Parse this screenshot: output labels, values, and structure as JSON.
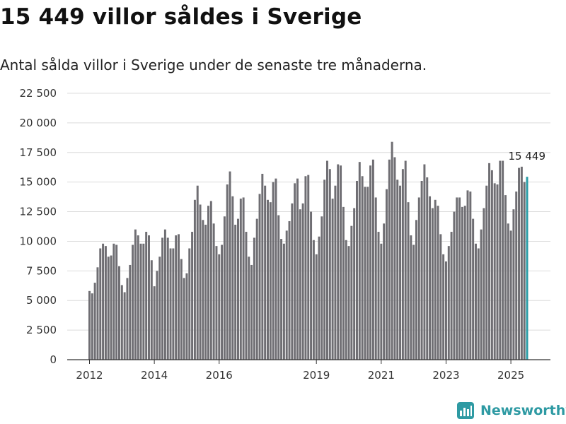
{
  "title": "15 449 villor såldes i Sverige",
  "subtitle": "Antal sålda villor i Sverige under de senaste tre månaderna.",
  "brand": {
    "name": "Newsworthy",
    "icon": "newsworthy-logo-icon"
  },
  "colors": {
    "bar": "#6f6e73",
    "highlight": "#2a9da6",
    "grid": "#dcdcdc",
    "axis": "#333333",
    "text": "#333333"
  },
  "chart_data": {
    "type": "bar",
    "title": "15 449 villor såldes i Sverige",
    "subtitle": "Antal sålda villor i Sverige under de senaste tre månaderna.",
    "xlabel": "",
    "ylabel": "",
    "ylim": [
      0,
      22500
    ],
    "yticks": [
      0,
      2500,
      5000,
      7500,
      10000,
      12500,
      15000,
      17500,
      20000,
      22500
    ],
    "ytick_labels": [
      "0",
      "2 500",
      "5 000",
      "7 500",
      "10 000",
      "12 500",
      "15 000",
      "17 500",
      "20 000",
      "22 500"
    ],
    "xtick_labels": [
      "2012",
      "2014",
      "2016",
      "2019",
      "2021",
      "2023",
      "2025"
    ],
    "grid": true,
    "start": "2012-01",
    "frequency": "monthly",
    "values": [
      5800,
      5600,
      6500,
      7800,
      9400,
      9800,
      9600,
      8700,
      8800,
      9800,
      9700,
      7900,
      6300,
      5700,
      6900,
      8000,
      9700,
      11000,
      10500,
      9800,
      9800,
      10800,
      10500,
      8400,
      6200,
      7500,
      8700,
      10300,
      11000,
      10300,
      9400,
      9400,
      10500,
      10600,
      8500,
      6900,
      7300,
      9400,
      10800,
      13500,
      14700,
      13100,
      11800,
      11400,
      13000,
      13400,
      11500,
      9600,
      8900,
      9700,
      12100,
      14800,
      15900,
      13800,
      11400,
      11900,
      13600,
      13700,
      10800,
      8700,
      8000,
      10300,
      11900,
      14000,
      15700,
      14700,
      13500,
      13300,
      15000,
      15300,
      12200,
      10200,
      9800,
      10900,
      11700,
      13200,
      14900,
      15300,
      12700,
      13200,
      15500,
      15600,
      12500,
      10100,
      8900,
      10400,
      12100,
      15200,
      16800,
      16100,
      13600,
      14700,
      16500,
      16400,
      12900,
      10100,
      9600,
      11300,
      12800,
      15100,
      16700,
      15500,
      14600,
      14600,
      16400,
      16900,
      13700,
      10800,
      9800,
      11500,
      14400,
      16900,
      18400,
      17100,
      15200,
      14700,
      16100,
      16800,
      13300,
      10500,
      9700,
      11800,
      13700,
      15100,
      16500,
      15400,
      13800,
      12800,
      13500,
      13000,
      10600,
      8900,
      8300,
      9600,
      10800,
      12500,
      13700,
      13700,
      12900,
      13000,
      14300,
      14200,
      11900,
      9800,
      9400,
      11000,
      12800,
      14700,
      16600,
      16000,
      14900,
      14800,
      16800,
      16800,
      13900,
      11500,
      10900,
      12700,
      14200,
      16200,
      16300,
      15000,
      15449
    ],
    "highlight_last": true,
    "annotation": {
      "label": "15 449",
      "index": "last"
    }
  }
}
